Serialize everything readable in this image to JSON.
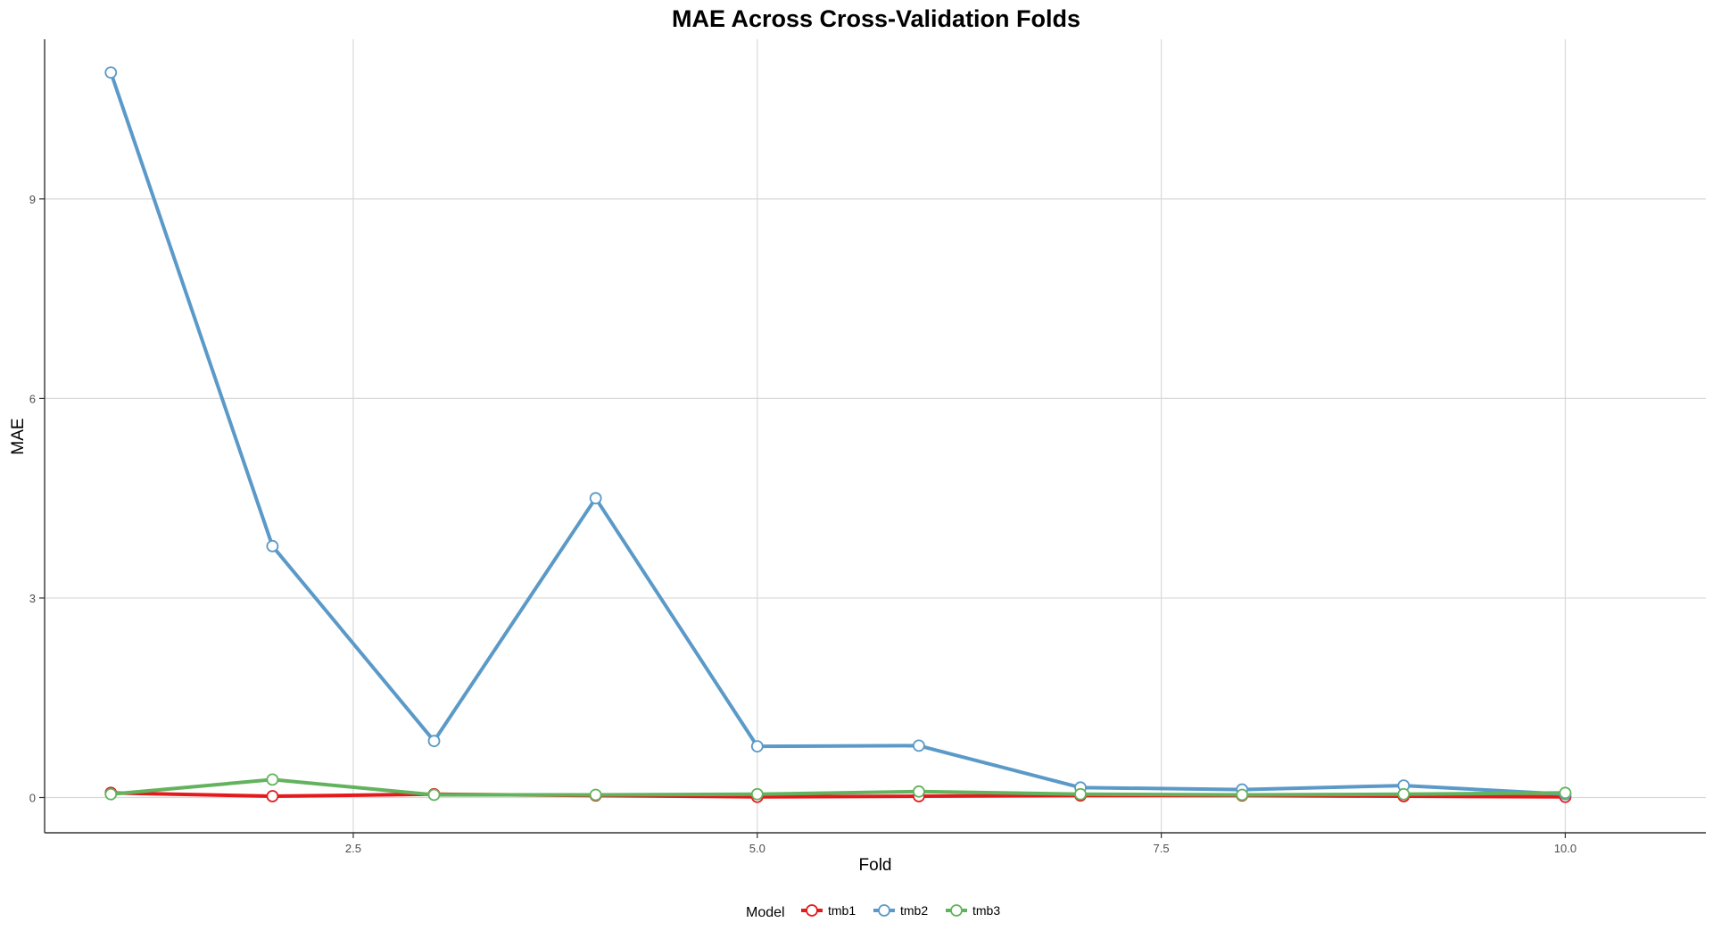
{
  "chart_data": {
    "type": "line",
    "title": "MAE Across Cross-Validation Folds",
    "xlabel": "Fold",
    "ylabel": "MAE",
    "x": [
      1,
      2,
      3,
      4,
      5,
      6,
      7,
      8,
      9,
      10
    ],
    "xlim": [
      0.59,
      10.87
    ],
    "ylim": [
      -0.53,
      11.4
    ],
    "xticks": [
      2.5,
      5.0,
      7.5,
      10.0
    ],
    "xtick_labels": [
      "2.5",
      "5.0",
      "7.5",
      "10.0"
    ],
    "yticks": [
      0,
      3,
      6,
      9
    ],
    "ytick_labels": [
      "0",
      "3",
      "6",
      "9"
    ],
    "grid": true,
    "legend": {
      "title": "Model",
      "position": "bottom"
    },
    "series": [
      {
        "name": "tmb1",
        "color": "#E41A1C",
        "values": [
          0.07,
          0.02,
          0.05,
          0.03,
          0.01,
          0.02,
          0.03,
          0.03,
          0.02,
          0.01
        ]
      },
      {
        "name": "tmb2",
        "color": "#5B9AC8",
        "values": [
          10.9,
          3.78,
          0.85,
          4.5,
          0.77,
          0.78,
          0.15,
          0.12,
          0.18,
          0.05
        ]
      },
      {
        "name": "tmb3",
        "color": "#63B35E",
        "values": [
          0.05,
          0.27,
          0.04,
          0.04,
          0.05,
          0.09,
          0.05,
          0.04,
          0.05,
          0.07
        ]
      }
    ]
  }
}
